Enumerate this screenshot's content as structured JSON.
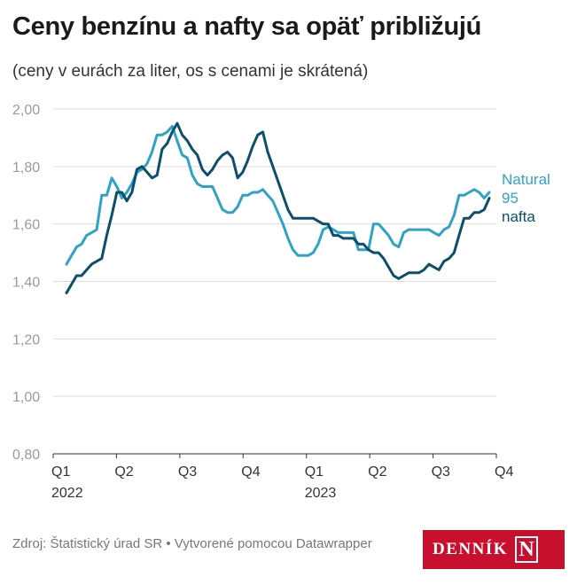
{
  "header": {
    "title": "Ceny benzínu a nafty sa opäť približujú",
    "subtitle": "(ceny v eurách za liter, os s cenami je skrátená)"
  },
  "footer": {
    "source": "Zdroj: Štatistický úrad SR • Vytvorené pomocou Datawrapper"
  },
  "logo": {
    "text": "DENNÍK",
    "mark": "N",
    "color": "#c8102e"
  },
  "chart_data": {
    "type": "line",
    "ylim": [
      0.8,
      2.0
    ],
    "yticks": [
      "2,00",
      "1,80",
      "1,60",
      "1,40",
      "1,20",
      "1,00",
      "0,80"
    ],
    "ytick_values": [
      2.0,
      1.8,
      1.6,
      1.4,
      1.2,
      1.0,
      0.8
    ],
    "xticks": [
      {
        "label": "Q1",
        "sub": "2022"
      },
      {
        "label": "Q2",
        "sub": ""
      },
      {
        "label": "Q3",
        "sub": ""
      },
      {
        "label": "Q4",
        "sub": ""
      },
      {
        "label": "Q1",
        "sub": "2023"
      },
      {
        "label": "Q2",
        "sub": ""
      },
      {
        "label": "Q3",
        "sub": ""
      },
      {
        "label": "Q4",
        "sub": ""
      }
    ],
    "grid": true,
    "series": [
      {
        "name": "Natural 95",
        "label_lines": [
          "Natural",
          "95"
        ],
        "color": "#2fa3c6",
        "values": [
          1.46,
          1.49,
          1.52,
          1.53,
          1.56,
          1.57,
          1.58,
          1.7,
          1.7,
          1.76,
          1.73,
          1.69,
          1.71,
          1.74,
          1.78,
          1.79,
          1.81,
          1.85,
          1.91,
          1.91,
          1.92,
          1.94,
          1.89,
          1.84,
          1.83,
          1.77,
          1.74,
          1.73,
          1.73,
          1.73,
          1.69,
          1.65,
          1.64,
          1.64,
          1.66,
          1.7,
          1.7,
          1.71,
          1.71,
          1.72,
          1.7,
          1.68,
          1.64,
          1.6,
          1.55,
          1.51,
          1.49,
          1.49,
          1.49,
          1.5,
          1.53,
          1.58,
          1.59,
          1.58,
          1.57,
          1.57,
          1.57,
          1.57,
          1.51,
          1.51,
          1.51,
          1.6,
          1.6,
          1.58,
          1.56,
          1.53,
          1.52,
          1.57,
          1.58,
          1.58,
          1.58,
          1.58,
          1.58,
          1.57,
          1.56,
          1.58,
          1.59,
          1.63,
          1.7,
          1.7,
          1.71,
          1.72,
          1.71,
          1.69,
          1.71
        ]
      },
      {
        "name": "nafta",
        "label_lines": [
          "nafta"
        ],
        "color": "#0b4f6c",
        "values": [
          1.36,
          1.39,
          1.42,
          1.42,
          1.44,
          1.46,
          1.47,
          1.48,
          1.56,
          1.63,
          1.71,
          1.71,
          1.68,
          1.71,
          1.79,
          1.8,
          1.78,
          1.76,
          1.77,
          1.86,
          1.88,
          1.92,
          1.95,
          1.91,
          1.89,
          1.86,
          1.84,
          1.79,
          1.77,
          1.79,
          1.82,
          1.84,
          1.85,
          1.83,
          1.76,
          1.78,
          1.82,
          1.87,
          1.91,
          1.92,
          1.85,
          1.8,
          1.75,
          1.7,
          1.65,
          1.62,
          1.62,
          1.62,
          1.62,
          1.62,
          1.61,
          1.6,
          1.6,
          1.56,
          1.56,
          1.55,
          1.55,
          1.55,
          1.53,
          1.53,
          1.51,
          1.5,
          1.5,
          1.48,
          1.45,
          1.42,
          1.41,
          1.42,
          1.43,
          1.43,
          1.43,
          1.44,
          1.46,
          1.45,
          1.44,
          1.47,
          1.48,
          1.5,
          1.56,
          1.62,
          1.62,
          1.64,
          1.64,
          1.65,
          1.69
        ]
      }
    ]
  }
}
